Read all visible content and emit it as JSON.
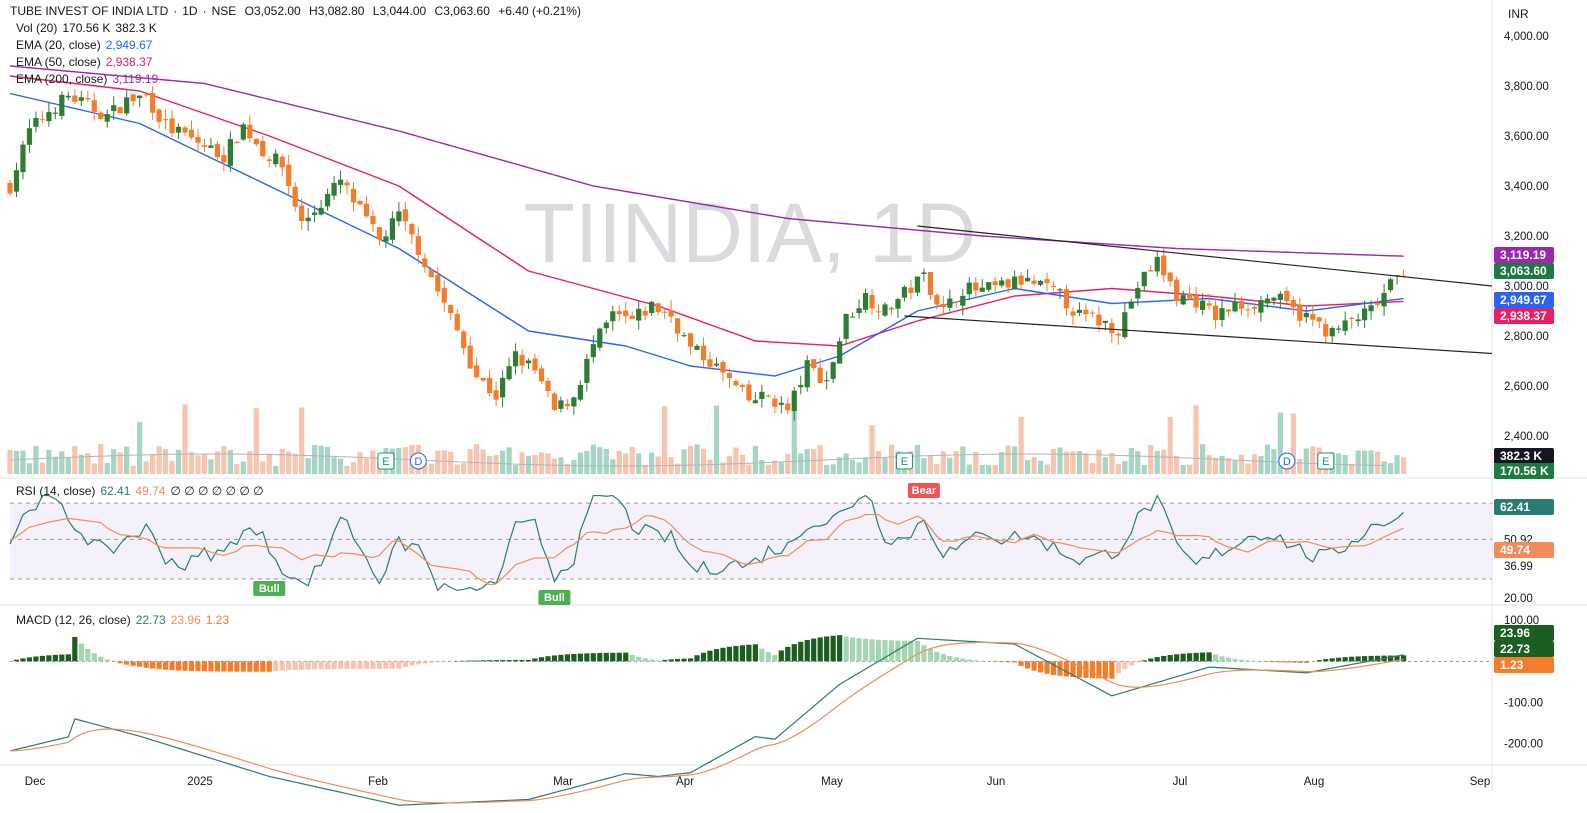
{
  "header": {
    "symbol": "TUBE INVEST OF INDIA LTD",
    "interval": "1D",
    "exchange": "NSE",
    "ohlc": {
      "o": "3,052.00",
      "h": "3,082.80",
      "l": "3,044.00",
      "c": "3,063.60",
      "chg": "+6.40 (+0.21%)"
    },
    "currency": "INR",
    "watermark": "TIINDIA, 1D"
  },
  "legend": {
    "vol": {
      "label": "Vol (20)",
      "v1": "170.56 K",
      "v2": "382.3 K"
    },
    "ema20": {
      "label": "EMA (20, close)",
      "value": "2,949.67",
      "color": "#2962ff"
    },
    "ema50": {
      "label": "EMA (50, close)",
      "value": "2,938.37",
      "color": "#e91e63"
    },
    "ema200": {
      "label": "EMA (200, close)",
      "value": "3,119.19",
      "color": "#9c27b0"
    },
    "rsi": {
      "label": "RSI (14, close)",
      "v1": "62.41",
      "v2": "49.74",
      "extra": "∅ ∅ ∅ ∅ ∅ ∅ ∅"
    },
    "macd": {
      "label": "MACD (12, 26, close)",
      "v1": "22.73",
      "v2": "23.96",
      "v3": "1.23"
    }
  },
  "axis_tags": {
    "ema200": "3,119.19",
    "price": "3,063.60",
    "ema20": "2,949.67",
    "ema50": "2,938.37",
    "vol_avg": "382.3 K",
    "vol": "170.56 K",
    "rsi": "62.41",
    "rsi_ma": "49.74",
    "macd_signal": "23.96",
    "macd": "22.73",
    "macd_hist": "1.23"
  },
  "rsi_axis_labels": [
    "50.92",
    "36.99",
    "20.00"
  ],
  "macd_axis_labels": [
    "100.00",
    "-100.00",
    "-200.00"
  ],
  "signals": {
    "bull": "Bull",
    "bear": "Bear",
    "earnings": "E",
    "dividend": "D"
  },
  "colors": {
    "up": "#089981",
    "down": "#f23645",
    "candle_up": "#2e7d32",
    "candle_down": "#f57c2a",
    "ema20": "#2962ff",
    "ema50": "#e91e63",
    "ema200": "#9c27b0",
    "rsi": "#2a7b72",
    "rsi_ma": "#f08c5a"
  },
  "chart_data": {
    "type": "candlestick",
    "x_labels": [
      "Dec",
      "2025",
      "Feb",
      "Mar",
      "Apr",
      "May",
      "Jun",
      "Jul",
      "Aug",
      "Sep"
    ],
    "y_ticks": [
      2400,
      2600,
      2800,
      3000,
      3200,
      3400,
      3600,
      3800,
      4000
    ],
    "ylim": [
      2300,
      4060
    ],
    "close_path": [
      [
        0,
        3400
      ],
      [
        3,
        3620
      ],
      [
        6,
        3700
      ],
      [
        9,
        3760
      ],
      [
        12,
        3720
      ],
      [
        15,
        3680
      ],
      [
        18,
        3740
      ],
      [
        21,
        3760
      ],
      [
        24,
        3640
      ],
      [
        27,
        3600
      ],
      [
        30,
        3560
      ],
      [
        33,
        3520
      ],
      [
        36,
        3640
      ],
      [
        39,
        3540
      ],
      [
        42,
        3480
      ],
      [
        45,
        3250
      ],
      [
        48,
        3330
      ],
      [
        51,
        3420
      ],
      [
        54,
        3300
      ],
      [
        57,
        3180
      ],
      [
        60,
        3280
      ],
      [
        63,
        3150
      ],
      [
        66,
        2980
      ],
      [
        69,
        2820
      ],
      [
        72,
        2640
      ],
      [
        75,
        2560
      ],
      [
        78,
        2720
      ],
      [
        81,
        2660
      ],
      [
        84,
        2500
      ],
      [
        87,
        2560
      ],
      [
        90,
        2760
      ],
      [
        93,
        2880
      ],
      [
        96,
        2860
      ],
      [
        99,
        2920
      ],
      [
        102,
        2880
      ],
      [
        105,
        2750
      ],
      [
        108,
        2700
      ],
      [
        111,
        2620
      ],
      [
        114,
        2540
      ],
      [
        117,
        2560
      ],
      [
        120,
        2500
      ],
      [
        123,
        2680
      ],
      [
        126,
        2620
      ],
      [
        129,
        2870
      ],
      [
        132,
        2960
      ],
      [
        135,
        2900
      ],
      [
        138,
        2970
      ],
      [
        141,
        3040
      ],
      [
        144,
        2900
      ],
      [
        147,
        2990
      ],
      [
        150,
        2980
      ],
      [
        153,
        3000
      ],
      [
        156,
        3020
      ],
      [
        159,
        3000
      ],
      [
        162,
        2960
      ],
      [
        165,
        2880
      ],
      [
        168,
        2860
      ],
      [
        171,
        2830
      ],
      [
        174,
        3000
      ],
      [
        177,
        3100
      ],
      [
        180,
        2960
      ],
      [
        183,
        2940
      ],
      [
        186,
        2880
      ],
      [
        189,
        2920
      ],
      [
        192,
        2930
      ],
      [
        195,
        2960
      ],
      [
        198,
        2900
      ],
      [
        201,
        2860
      ],
      [
        204,
        2810
      ],
      [
        207,
        2860
      ],
      [
        210,
        2900
      ],
      [
        213,
        3000
      ],
      [
        215,
        3063.6
      ]
    ],
    "ema20_path": [
      [
        0,
        3770
      ],
      [
        20,
        3650
      ],
      [
        40,
        3400
      ],
      [
        60,
        3150
      ],
      [
        80,
        2820
      ],
      [
        95,
        2760
      ],
      [
        105,
        2680
      ],
      [
        118,
        2640
      ],
      [
        128,
        2720
      ],
      [
        140,
        2900
      ],
      [
        155,
        2990
      ],
      [
        170,
        2930
      ],
      [
        185,
        2950
      ],
      [
        200,
        2900
      ],
      [
        215,
        2949.67
      ]
    ],
    "ema50_path": [
      [
        0,
        3840
      ],
      [
        20,
        3780
      ],
      [
        40,
        3600
      ],
      [
        60,
        3400
      ],
      [
        80,
        3060
      ],
      [
        100,
        2920
      ],
      [
        115,
        2780
      ],
      [
        128,
        2760
      ],
      [
        140,
        2860
      ],
      [
        155,
        2960
      ],
      [
        170,
        2990
      ],
      [
        185,
        2960
      ],
      [
        200,
        2920
      ],
      [
        215,
        2938.37
      ]
    ],
    "ema200_path": [
      [
        0,
        3880
      ],
      [
        30,
        3810
      ],
      [
        60,
        3620
      ],
      [
        90,
        3400
      ],
      [
        120,
        3270
      ],
      [
        150,
        3200
      ],
      [
        180,
        3150
      ],
      [
        215,
        3119.19
      ]
    ],
    "trendlines": [
      {
        "from": [
          140,
          3240
        ],
        "to": [
          230,
          3000
        ]
      },
      {
        "from": [
          138,
          2880
        ],
        "to": [
          230,
          2730
        ]
      }
    ],
    "rsi": {
      "ylim": [
        20,
        78
      ],
      "levels": [
        50.92,
        36.99
      ],
      "last": 62.41,
      "ma_last": 49.74
    },
    "macd": {
      "ylim": [
        -240,
        120
      ],
      "macd_last": 22.73,
      "signal_last": 23.96,
      "hist_last": 1.23
    }
  }
}
